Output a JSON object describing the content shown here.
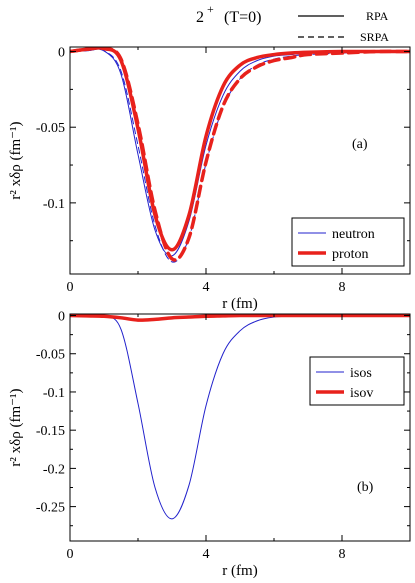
{
  "header": {
    "title_main": "2",
    "title_sup": "+",
    "title_rest": "(T=0)",
    "style_key": [
      {
        "label": "RPA",
        "dash": "solid"
      },
      {
        "label": "SRPA",
        "dash": "dashed"
      }
    ]
  },
  "colors": {
    "neutron": "#2222cc",
    "proton": "#e8211c",
    "axis": "#000000"
  },
  "chart_data": [
    {
      "type": "line",
      "panel_tag": "(a)",
      "xlabel": "r (fm)",
      "ylabel": "r² xδρ  (fm⁻¹)",
      "xlim": [
        0,
        10
      ],
      "ylim": [
        -0.147,
        0.003
      ],
      "x_ticks": [
        0,
        4,
        8
      ],
      "x_tick_labels": [
        "0",
        "4",
        "8"
      ],
      "y_ticks": [
        0,
        -0.05,
        -0.1
      ],
      "y_tick_labels": [
        "0",
        "-0.05",
        "-0.1"
      ],
      "legend_position": "bottom-right",
      "legend": [
        {
          "name": "neutron",
          "color": "#2222cc",
          "width": "thin"
        },
        {
          "name": "proton",
          "color": "#e8211c",
          "width": "thick"
        }
      ],
      "x": [
        0,
        0.5,
        1.0,
        1.5,
        2.0,
        2.5,
        3.0,
        3.5,
        4.0,
        4.5,
        5.0,
        5.5,
        6.0,
        6.5,
        7.0,
        8.0,
        9.0,
        10.0
      ],
      "series": [
        {
          "name": "neutron",
          "style": "RPA",
          "color": "#2222cc",
          "width": 1,
          "values": [
            0,
            0.0005,
            0.0005,
            -0.015,
            -0.068,
            -0.118,
            -0.135,
            -0.112,
            -0.062,
            -0.029,
            -0.013,
            -0.006,
            -0.003,
            -0.002,
            -0.001,
            -0.0005,
            0,
            0
          ]
        },
        {
          "name": "neutron",
          "style": "SRPA",
          "color": "#2222cc",
          "width": 1,
          "values": [
            0,
            0.0005,
            0.0005,
            -0.013,
            -0.062,
            -0.115,
            -0.139,
            -0.123,
            -0.074,
            -0.037,
            -0.018,
            -0.009,
            -0.005,
            -0.003,
            -0.002,
            -0.001,
            0,
            0
          ]
        },
        {
          "name": "proton",
          "style": "RPA",
          "color": "#e8211c",
          "width": 3.5,
          "values": [
            0,
            0.0015,
            0.002,
            -0.006,
            -0.051,
            -0.108,
            -0.131,
            -0.108,
            -0.056,
            -0.023,
            -0.009,
            -0.004,
            -0.002,
            -0.001,
            -0.0005,
            0,
            0,
            0
          ]
        },
        {
          "name": "proton",
          "style": "SRPA",
          "color": "#e8211c",
          "width": 3.5,
          "values": [
            0,
            0.0015,
            0.002,
            -0.005,
            -0.048,
            -0.105,
            -0.137,
            -0.123,
            -0.073,
            -0.036,
            -0.018,
            -0.01,
            -0.006,
            -0.004,
            -0.002,
            -0.001,
            0,
            0
          ]
        }
      ]
    },
    {
      "type": "line",
      "panel_tag": "(b)",
      "xlabel": "r (fm)",
      "ylabel": "r² xδρ  (fm⁻¹)",
      "xlim": [
        0,
        10
      ],
      "ylim": [
        -0.295,
        0.002
      ],
      "x_ticks": [
        0,
        4,
        8
      ],
      "x_tick_labels": [
        "0",
        "4",
        "8"
      ],
      "y_ticks": [
        0,
        -0.05,
        -0.1,
        -0.15,
        -0.2,
        -0.25
      ],
      "y_tick_labels": [
        "0",
        "-0.05",
        "-0.1",
        "-0.15",
        "-0.2",
        "-0.25"
      ],
      "legend_position": "top-right",
      "legend": [
        {
          "name": "isos",
          "color": "#2222cc",
          "width": "thin"
        },
        {
          "name": "isov",
          "color": "#e8211c",
          "width": "thick"
        }
      ],
      "x": [
        0,
        0.5,
        1.0,
        1.5,
        2.0,
        2.5,
        3.0,
        3.5,
        4.0,
        4.5,
        5.0,
        5.5,
        6.0,
        6.5,
        7.0,
        8.0,
        9.0,
        10.0
      ],
      "series": [
        {
          "name": "isos",
          "color": "#2222cc",
          "width": 1,
          "values": [
            0,
            0,
            0,
            -0.018,
            -0.115,
            -0.225,
            -0.266,
            -0.222,
            -0.118,
            -0.05,
            -0.02,
            -0.007,
            -0.002,
            -0.001,
            0,
            0,
            0,
            0
          ]
        },
        {
          "name": "isov",
          "color": "#e8211c",
          "width": 3.5,
          "values": [
            0,
            -0.0005,
            -0.001,
            -0.003,
            -0.006,
            -0.005,
            -0.003,
            -0.002,
            -0.001,
            -0.0005,
            0,
            0,
            0,
            0,
            0,
            0,
            0,
            0
          ]
        }
      ]
    }
  ]
}
